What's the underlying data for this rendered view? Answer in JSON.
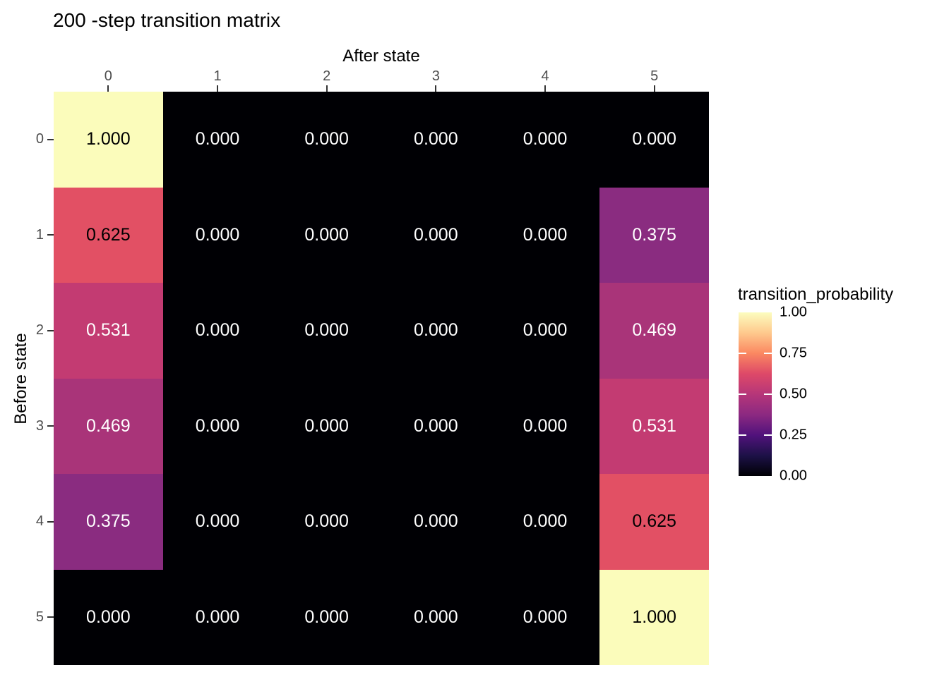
{
  "chart_data": {
    "type": "heatmap",
    "title": "200 -step transition matrix",
    "x_axis": {
      "label": "After state",
      "position": "top",
      "ticks": [
        "0",
        "1",
        "2",
        "3",
        "4",
        "5"
      ]
    },
    "y_axis": {
      "label": "Before state",
      "position": "left",
      "ticks": [
        "0",
        "1",
        "2",
        "3",
        "4",
        "5"
      ]
    },
    "values": [
      [
        1.0,
        0.0,
        0.0,
        0.0,
        0.0,
        0.0
      ],
      [
        0.625,
        0.0,
        0.0,
        0.0,
        0.0,
        0.375
      ],
      [
        0.531,
        0.0,
        0.0,
        0.0,
        0.0,
        0.469
      ],
      [
        0.469,
        0.0,
        0.0,
        0.0,
        0.0,
        0.531
      ],
      [
        0.375,
        0.0,
        0.0,
        0.0,
        0.0,
        0.625
      ],
      [
        0.0,
        0.0,
        0.0,
        0.0,
        0.0,
        1.0
      ]
    ],
    "cell_labels": [
      [
        "1.000",
        "0.000",
        "0.000",
        "0.000",
        "0.000",
        "0.000"
      ],
      [
        "0.625",
        "0.000",
        "0.000",
        "0.000",
        "0.000",
        "0.375"
      ],
      [
        "0.531",
        "0.000",
        "0.000",
        "0.000",
        "0.000",
        "0.469"
      ],
      [
        "0.469",
        "0.000",
        "0.000",
        "0.000",
        "0.000",
        "0.531"
      ],
      [
        "0.375",
        "0.000",
        "0.000",
        "0.000",
        "0.000",
        "0.625"
      ],
      [
        "0.000",
        "0.000",
        "0.000",
        "0.000",
        "0.000",
        "1.000"
      ]
    ],
    "value_range": [
      0,
      1
    ],
    "colormap": "magma",
    "grid": "off",
    "value_colors": {
      "0.000": {
        "bg": "#000004",
        "text": "#ffffff"
      },
      "0.375": {
        "bg": "#8a2c80",
        "text": "#ffffff"
      },
      "0.469": {
        "bg": "#a93479",
        "text": "#ffffff"
      },
      "0.531": {
        "bg": "#c33b72",
        "text": "#ffffff"
      },
      "0.625": {
        "bg": "#e25064",
        "text": "#000000"
      },
      "1.000": {
        "bg": "#fbfcbb",
        "text": "#000000"
      }
    },
    "legend": {
      "title": "transition_probability",
      "position": "right",
      "tick_labels": [
        "1.00",
        "0.75",
        "0.50",
        "0.25",
        "0.00"
      ],
      "gradient_stops_top_to_bottom": [
        "#fcfdbf",
        "#fec98d",
        "#fb8861",
        "#de4968",
        "#b63679",
        "#8c2981",
        "#51127c",
        "#1d1147",
        "#000004"
      ]
    },
    "colors": {
      "axis_text": "#4d4d4d",
      "tick_mark": "#333333",
      "title_text": "#000000",
      "background": "#ffffff"
    }
  }
}
